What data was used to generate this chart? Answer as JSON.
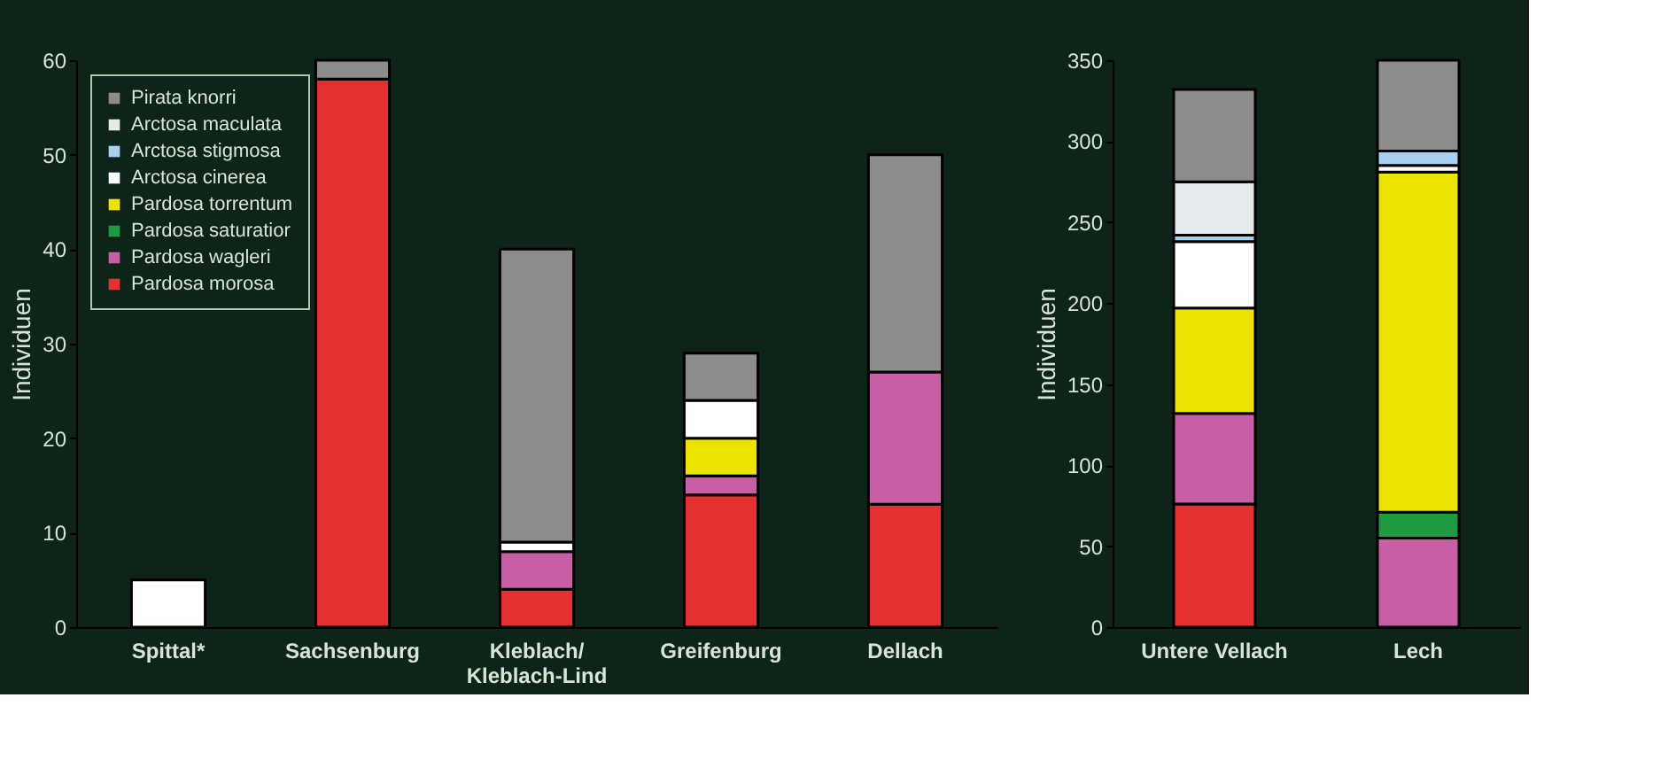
{
  "chart_data": [
    {
      "type": "bar",
      "stacked": true,
      "ylabel": "Individuen",
      "categories": [
        "Spittal*",
        "Sachsenburg",
        "Kleblach/ Kleblach-Lind",
        "Greifenburg",
        "Dellach"
      ],
      "ylim": [
        0,
        60
      ],
      "yticks": [
        0,
        10,
        20,
        30,
        40,
        50,
        60
      ],
      "grid": false,
      "legend": "top left",
      "series": [
        {
          "name": "Pardosa morosa",
          "color": "#e53030",
          "values": [
            0,
            58,
            4,
            14,
            13
          ]
        },
        {
          "name": "Pardosa wagleri",
          "color": "#c85ea6",
          "values": [
            0,
            0,
            4,
            2,
            14
          ]
        },
        {
          "name": "Pardosa saturatior",
          "color": "#1e9a40",
          "values": [
            0,
            0,
            0,
            0,
            0
          ]
        },
        {
          "name": "Pardosa torrentum",
          "color": "#ece400",
          "values": [
            0,
            0,
            0,
            4,
            0
          ]
        },
        {
          "name": "Arctosa cinerea",
          "color": "#ffffff",
          "values": [
            5,
            0,
            1,
            4,
            0
          ]
        },
        {
          "name": "Arctosa stigmosa",
          "color": "#a8d0f0",
          "values": [
            0,
            0,
            0,
            0,
            0
          ]
        },
        {
          "name": "Arctosa maculata",
          "color": "#e6eaec",
          "values": [
            0,
            0,
            0,
            0,
            0
          ]
        },
        {
          "name": "Pirata knorri",
          "color": "#8c8c8c",
          "values": [
            0,
            2,
            31,
            5,
            23
          ]
        }
      ]
    },
    {
      "type": "bar",
      "stacked": true,
      "ylabel": "Individuen",
      "categories": [
        "Untere Vellach",
        "Lech"
      ],
      "ylim": [
        0,
        350
      ],
      "yticks": [
        0,
        50,
        100,
        150,
        200,
        250,
        300,
        350
      ],
      "grid": false,
      "series": [
        {
          "color": "#e53030",
          "values": [
            76,
            0
          ]
        },
        {
          "color": "#c85ea6",
          "values": [
            56,
            55
          ]
        },
        {
          "color": "#1e9a40",
          "values": [
            0,
            16
          ]
        },
        {
          "color": "#ece400",
          "values": [
            65,
            210
          ]
        },
        {
          "color": "#ffffff",
          "values": [
            41,
            4
          ]
        },
        {
          "color": "#a8d0f0",
          "values": [
            4,
            9
          ]
        },
        {
          "color": "#e6eaec",
          "values": [
            33,
            0
          ]
        },
        {
          "color": "#8c8c8c",
          "values": [
            57,
            56
          ]
        }
      ]
    }
  ]
}
